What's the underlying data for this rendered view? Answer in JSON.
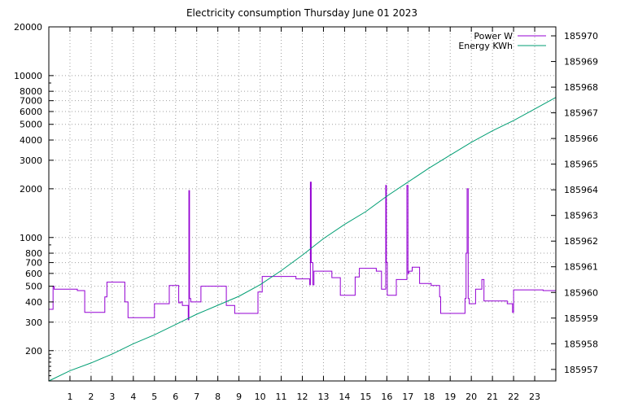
{
  "chart_data": {
    "type": "line",
    "title": "Electricity consumption Thursday June 01 2023",
    "xlim": [
      0,
      24
    ],
    "x_ticks": [
      "1",
      "2",
      "3",
      "4",
      "5",
      "6",
      "7",
      "8",
      "9",
      "10",
      "11",
      "12",
      "13",
      "14",
      "15",
      "16",
      "17",
      "18",
      "19",
      "20",
      "21",
      "22",
      "23"
    ],
    "y_left": {
      "scale": "log",
      "lim": [
        130,
        20000
      ],
      "ticks": [
        200,
        300,
        400,
        500,
        600,
        700,
        800,
        1000,
        2000,
        3000,
        4000,
        5000,
        6000,
        7000,
        8000,
        10000,
        20000
      ],
      "tick_labels": [
        "200",
        "300",
        "400",
        "500",
        "600",
        "700",
        "800",
        "1000",
        "2000",
        "3000",
        "4000",
        "5000",
        "6000",
        "7000",
        "8000",
        "10000",
        "20000"
      ]
    },
    "y_right": {
      "scale": "linear",
      "lim": [
        185956.55,
        185970.35
      ],
      "ticks": [
        185957,
        185958,
        185959,
        185960,
        185961,
        185962,
        185963,
        185964,
        185965,
        185966,
        185967,
        185968,
        185969,
        185970
      ],
      "tick_labels": [
        "185957",
        "185958",
        "185959",
        "185960",
        "185961",
        "185962",
        "185963",
        "185964",
        "185965",
        "185966",
        "185967",
        "185968",
        "185969",
        "185970"
      ]
    },
    "grid": true,
    "legend_position": "top-right",
    "series": [
      {
        "name": "Power W",
        "axis": "left",
        "color": "#9400d3",
        "step": true,
        "x": [
          0,
          0.2,
          0.25,
          1.35,
          1.7,
          2.65,
          2.75,
          3.6,
          3.75,
          4.6,
          5.0,
          5.7,
          6.15,
          6.25,
          6.32,
          6.6,
          6.63,
          6.66,
          6.72,
          7.2,
          7.6,
          8.4,
          8.8,
          9.9,
          10.1,
          11.7,
          12.35,
          12.38,
          12.42,
          12.5,
          12.55,
          13.4,
          13.8,
          14.5,
          14.7,
          15.5,
          15.75,
          15.95,
          15.98,
          16.02,
          16.45,
          16.95,
          17.0,
          17.05,
          17.2,
          17.55,
          18.1,
          18.5,
          18.55,
          19.7,
          19.75,
          19.8,
          19.85,
          19.9,
          20.2,
          20.5,
          20.6,
          21.7,
          21.95,
          22.0,
          23.4,
          24.0
        ],
        "values": [
          360,
          500,
          480,
          470,
          345,
          430,
          530,
          400,
          320,
          320,
          390,
          505,
          395,
          400,
          380,
          310,
          1950,
          420,
          400,
          500,
          500,
          380,
          340,
          460,
          575,
          555,
          510,
          2200,
          700,
          510,
          620,
          565,
          440,
          570,
          645,
          620,
          480,
          2100,
          700,
          440,
          550,
          2100,
          600,
          620,
          655,
          520,
          505,
          430,
          340,
          420,
          800,
          2000,
          420,
          390,
          480,
          550,
          405,
          390,
          345,
          475,
          470,
          360
        ]
      },
      {
        "name": "Energy KWh",
        "axis": "right",
        "color": "#009e73",
        "step": false,
        "x": [
          0,
          1,
          2,
          3,
          4,
          5,
          6,
          7,
          8,
          9,
          10,
          11,
          12,
          13,
          14,
          15,
          16,
          17,
          18,
          19,
          20,
          21,
          22,
          23,
          24
        ],
        "values": [
          185956.55,
          185956.95,
          185957.25,
          185957.6,
          185958.0,
          185958.35,
          185958.75,
          185959.15,
          185959.5,
          185959.85,
          185960.3,
          185960.85,
          185961.45,
          185962.1,
          185962.65,
          185963.15,
          185963.75,
          185964.3,
          185964.85,
          185965.35,
          185965.85,
          185966.3,
          185966.7,
          185967.15,
          185967.6
        ]
      }
    ]
  }
}
